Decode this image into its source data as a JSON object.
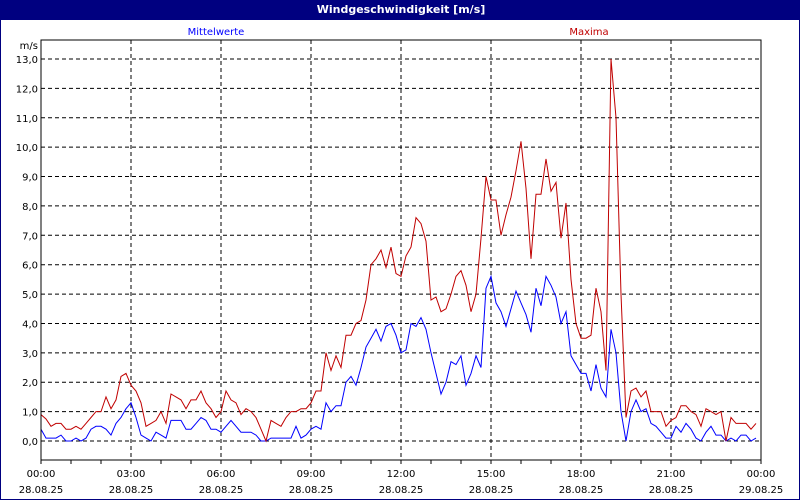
{
  "chart_data": {
    "type": "line",
    "title": "Windgeschwindigkeit [m/s]",
    "ylabel": "m/s",
    "ylim": [
      0,
      13
    ],
    "yticks": [
      "0,0",
      "1,0",
      "2,0",
      "3,0",
      "4,0",
      "5,0",
      "6,0",
      "7,0",
      "8,0",
      "9,0",
      "10,0",
      "11,0",
      "12,0",
      "13,0"
    ],
    "xticks": [
      {
        "time": "00:00",
        "date": "28.08.25"
      },
      {
        "time": "03:00",
        "date": "28.08.25"
      },
      {
        "time": "06:00",
        "date": "28.08.25"
      },
      {
        "time": "09:00",
        "date": "28.08.25"
      },
      {
        "time": "12:00",
        "date": "28.08.25"
      },
      {
        "time": "15:00",
        "date": "28.08.25"
      },
      {
        "time": "18:00",
        "date": "28.08.25"
      },
      {
        "time": "21:00",
        "date": "28.08.25"
      },
      {
        "time": "00:00",
        "date": "29.08.25"
      }
    ],
    "xlim": [
      "28.08.25 00:00",
      "29.08.25 00:00"
    ],
    "grid": true,
    "legend_placement": "top",
    "x": [
      "00:00",
      "00:10",
      "00:20",
      "00:30",
      "00:40",
      "00:50",
      "01:00",
      "01:10",
      "01:20",
      "01:30",
      "01:40",
      "01:50",
      "02:00",
      "02:10",
      "02:20",
      "02:30",
      "02:40",
      "02:50",
      "03:00",
      "03:10",
      "03:20",
      "03:30",
      "03:40",
      "03:50",
      "04:00",
      "04:10",
      "04:20",
      "04:30",
      "04:40",
      "04:50",
      "05:00",
      "05:10",
      "05:20",
      "05:30",
      "05:40",
      "05:50",
      "06:00",
      "06:10",
      "06:20",
      "06:30",
      "06:40",
      "06:50",
      "07:00",
      "07:10",
      "07:20",
      "07:30",
      "07:40",
      "07:50",
      "08:00",
      "08:10",
      "08:20",
      "08:30",
      "08:40",
      "08:50",
      "09:00",
      "09:10",
      "09:20",
      "09:30",
      "09:40",
      "09:50",
      "10:00",
      "10:10",
      "10:20",
      "10:30",
      "10:40",
      "10:50",
      "11:00",
      "11:10",
      "11:20",
      "11:30",
      "11:40",
      "11:50",
      "12:00",
      "12:10",
      "12:20",
      "12:30",
      "12:40",
      "12:50",
      "13:00",
      "13:10",
      "13:20",
      "13:30",
      "13:40",
      "13:50",
      "14:00",
      "14:10",
      "14:20",
      "14:30",
      "14:40",
      "14:50",
      "15:00",
      "15:10",
      "15:20",
      "15:30",
      "15:40",
      "15:50",
      "16:00",
      "16:10",
      "16:20",
      "16:30",
      "16:40",
      "16:50",
      "17:00",
      "17:10",
      "17:20",
      "17:30",
      "17:40",
      "17:50",
      "18:00",
      "18:10",
      "18:20",
      "18:30",
      "18:40",
      "18:50",
      "19:00",
      "19:10",
      "19:20",
      "19:30",
      "19:40",
      "19:50",
      "20:00",
      "20:10",
      "20:20",
      "20:30",
      "20:40",
      "20:50",
      "21:00",
      "21:10",
      "21:20",
      "21:30",
      "21:40",
      "21:50",
      "22:00",
      "22:10",
      "22:20",
      "22:30",
      "22:40",
      "22:50",
      "23:00",
      "23:10",
      "23:20",
      "23:30",
      "23:40",
      "23:50"
    ],
    "series": [
      {
        "name": "Mittelwerte",
        "color": "#0000ff",
        "values": [
          0.4,
          0.1,
          0.1,
          0.1,
          0.2,
          0.0,
          0.0,
          0.1,
          0.0,
          0.1,
          0.4,
          0.5,
          0.5,
          0.4,
          0.2,
          0.6,
          0.8,
          1.1,
          1.3,
          0.8,
          0.2,
          0.1,
          0.0,
          0.3,
          0.2,
          0.1,
          0.7,
          0.7,
          0.7,
          0.4,
          0.4,
          0.6,
          0.8,
          0.7,
          0.4,
          0.4,
          0.3,
          0.5,
          0.7,
          0.5,
          0.3,
          0.3,
          0.3,
          0.2,
          0.0,
          0.0,
          0.1,
          0.1,
          0.1,
          0.1,
          0.1,
          0.5,
          0.1,
          0.2,
          0.4,
          0.5,
          0.4,
          1.3,
          1.0,
          1.2,
          1.2,
          2.0,
          2.2,
          1.9,
          2.5,
          3.2,
          3.5,
          3.8,
          3.4,
          3.9,
          4.0,
          3.6,
          3.0,
          3.1,
          4.0,
          3.9,
          4.2,
          3.8,
          3.0,
          2.3,
          1.6,
          2.0,
          2.7,
          2.6,
          2.9,
          1.9,
          2.3,
          2.9,
          2.5,
          5.2,
          5.6,
          4.7,
          4.4,
          3.9,
          4.5,
          5.1,
          4.7,
          4.3,
          3.7,
          5.2,
          4.6,
          5.6,
          5.3,
          4.9,
          4.0,
          4.4,
          2.9,
          2.6,
          2.3,
          2.3,
          1.7,
          2.6,
          1.8,
          1.5,
          3.8,
          3.0,
          1.0,
          0.0,
          1.0,
          1.4,
          1.0,
          1.1,
          0.6,
          0.5,
          0.3,
          0.1,
          0.1,
          0.5,
          0.3,
          0.6,
          0.4,
          0.1,
          0.0,
          0.3,
          0.5,
          0.2,
          0.2,
          0.0,
          0.1,
          0.0,
          0.2,
          0.2,
          0.0,
          0.1
        ]
      },
      {
        "name": "Maxima",
        "color": "#c00000",
        "values": [
          0.9,
          0.75,
          0.5,
          0.6,
          0.6,
          0.4,
          0.4,
          0.5,
          0.4,
          0.6,
          0.8,
          1.0,
          1.0,
          1.5,
          1.1,
          1.4,
          2.2,
          2.3,
          1.9,
          1.7,
          1.3,
          0.5,
          0.6,
          0.7,
          1.0,
          0.6,
          1.6,
          1.5,
          1.4,
          1.1,
          1.4,
          1.4,
          1.7,
          1.3,
          1.1,
          0.8,
          1.0,
          1.7,
          1.4,
          1.3,
          0.9,
          1.1,
          1.0,
          0.8,
          0.4,
          0.0,
          0.7,
          0.6,
          0.5,
          0.8,
          1.0,
          1.0,
          1.1,
          1.1,
          1.3,
          1.7,
          1.7,
          3.0,
          2.4,
          2.9,
          2.5,
          3.6,
          3.6,
          4.0,
          4.1,
          4.8,
          6.0,
          6.2,
          6.5,
          5.9,
          6.6,
          5.7,
          5.6,
          6.3,
          6.6,
          7.6,
          7.4,
          6.8,
          4.8,
          4.9,
          4.4,
          4.5,
          5.0,
          5.6,
          5.8,
          5.3,
          4.4,
          5.0,
          6.9,
          9.0,
          8.2,
          8.2,
          7.0,
          7.7,
          8.3,
          9.2,
          10.2,
          8.6,
          6.2,
          8.4,
          8.4,
          9.6,
          8.5,
          8.8,
          6.9,
          8.1,
          5.5,
          4.0,
          3.5,
          3.5,
          3.6,
          5.2,
          4.4,
          2.4,
          13.0,
          11.0,
          5.0,
          0.8,
          1.7,
          1.8,
          1.5,
          1.7,
          1.0,
          1.0,
          1.0,
          0.5,
          0.7,
          0.8,
          1.2,
          1.2,
          1.0,
          0.9,
          0.5,
          1.1,
          1.0,
          0.9,
          1.0,
          0.0,
          0.8,
          0.6,
          0.6,
          0.6,
          0.4,
          0.6
        ]
      }
    ]
  }
}
